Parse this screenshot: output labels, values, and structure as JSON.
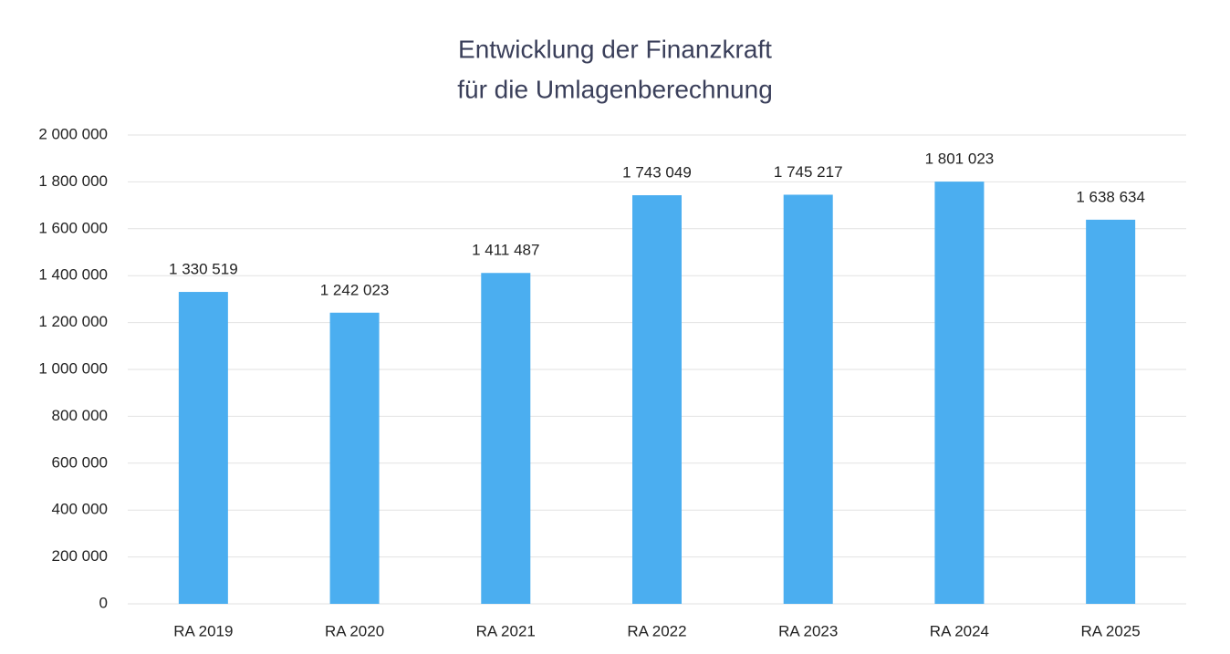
{
  "chart_data": {
    "type": "bar",
    "title": [
      "Entwicklung der Finanzkraft",
      "für die Umlagenberechnung"
    ],
    "categories": [
      "RA 2019",
      "RA 2020",
      "RA 2021",
      "RA 2022",
      "RA 2023",
      "RA 2024",
      "RA 2025"
    ],
    "values": [
      1330519,
      1242023,
      1411487,
      1743049,
      1745217,
      1801023,
      1638634
    ],
    "value_labels": [
      "1 330 519",
      "1 242 023",
      "1 411 487",
      "1 743 049",
      "1 745 217",
      "1 801 023",
      "1 638 634"
    ],
    "color": "#4baef0",
    "ylim": [
      0,
      2000000
    ],
    "yticks": [
      0,
      {
        "value": 200000,
        "label": "200 000"
      },
      {
        "value": 400000,
        "label": "400 000"
      },
      {
        "value": 600000,
        "label": "600 000"
      },
      {
        "value": 800000,
        "label": "800 000"
      },
      {
        "value": 1000000,
        "label": "1 000 000"
      },
      {
        "value": 1200000,
        "label": "1 200 000"
      },
      {
        "value": 1400000,
        "label": "1 400 000"
      },
      {
        "value": 1600000,
        "label": "1 600 000"
      },
      {
        "value": 1800000,
        "label": "1 800 000"
      },
      {
        "value": 2000000,
        "label": "2 000 000"
      }
    ],
    "grid": true
  }
}
